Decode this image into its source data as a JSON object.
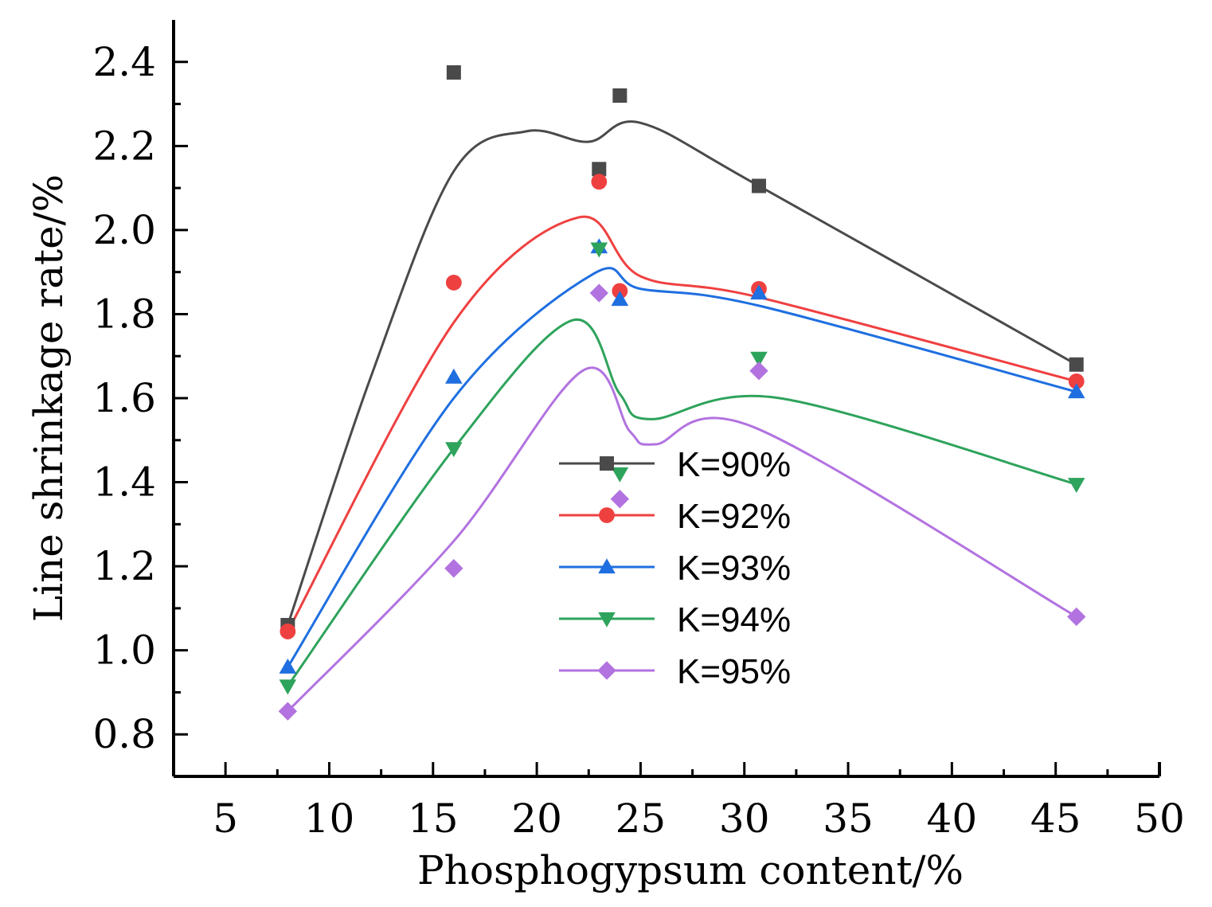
{
  "chart_data": {
    "type": "scatter",
    "title": "",
    "xlabel": "Phosphogypsum content/%",
    "ylabel": "Line shrinkage rate/%",
    "xlim": [
      2.5,
      50
    ],
    "ylim": [
      0.7,
      2.5
    ],
    "xticks": [
      5,
      10,
      15,
      20,
      25,
      30,
      35,
      40,
      45,
      50
    ],
    "xtick_labels": [
      "5",
      "10",
      "15",
      "20",
      "25",
      "30",
      "35",
      "40",
      "45",
      "50"
    ],
    "yticks": [
      0.8,
      1.0,
      1.2,
      1.4,
      1.6,
      1.8,
      2.0,
      2.2,
      2.4
    ],
    "ytick_labels": [
      "0.8",
      "1.0",
      "1.2",
      "1.4",
      "1.6",
      "1.8",
      "2.0",
      "2.2",
      "2.4"
    ],
    "grid": false,
    "legend_position": "center",
    "series": [
      {
        "name": "K=90%",
        "color": "#4a4a4a",
        "marker": "square",
        "points": [
          [
            8,
            1.06
          ],
          [
            16,
            2.375
          ],
          [
            23,
            2.145
          ],
          [
            24,
            2.32
          ],
          [
            30.7,
            2.105
          ],
          [
            46,
            1.68
          ]
        ],
        "fit": [
          [
            8,
            1.06
          ],
          [
            12,
            1.65
          ],
          [
            16,
            2.14
          ],
          [
            19.5,
            2.235
          ],
          [
            22.5,
            2.21
          ],
          [
            25,
            2.255
          ],
          [
            30.7,
            2.105
          ],
          [
            46,
            1.68
          ]
        ]
      },
      {
        "name": "K=92%",
        "color": "#ef4040",
        "marker": "circle",
        "points": [
          [
            8,
            1.045
          ],
          [
            16,
            1.875
          ],
          [
            23,
            2.115
          ],
          [
            24,
            1.855
          ],
          [
            30.7,
            1.86
          ],
          [
            46,
            1.64
          ]
        ],
        "fit": [
          [
            8,
            1.045
          ],
          [
            16,
            1.78
          ],
          [
            22,
            2.03
          ],
          [
            25,
            1.89
          ],
          [
            30.7,
            1.84
          ],
          [
            46,
            1.64
          ]
        ]
      },
      {
        "name": "K=93%",
        "color": "#1f6fe0",
        "marker": "triangle-up",
        "points": [
          [
            8,
            0.96
          ],
          [
            16,
            1.65
          ],
          [
            23,
            1.96
          ],
          [
            24,
            1.835
          ],
          [
            30.7,
            1.85
          ],
          [
            46,
            1.615
          ]
        ],
        "fit": [
          [
            8,
            0.96
          ],
          [
            16,
            1.6
          ],
          [
            22.7,
            1.895
          ],
          [
            25,
            1.86
          ],
          [
            30.7,
            1.82
          ],
          [
            46,
            1.615
          ]
        ]
      },
      {
        "name": "K=94%",
        "color": "#2ea35c",
        "marker": "triangle-down",
        "points": [
          [
            8,
            0.915
          ],
          [
            16,
            1.48
          ],
          [
            23,
            1.955
          ],
          [
            24,
            1.42
          ],
          [
            30.7,
            1.695
          ],
          [
            46,
            1.395
          ]
        ],
        "fit": [
          [
            8,
            0.915
          ],
          [
            16,
            1.48
          ],
          [
            21.7,
            1.785
          ],
          [
            24,
            1.61
          ],
          [
            25.5,
            1.55
          ],
          [
            31.7,
            1.6
          ],
          [
            46,
            1.395
          ]
        ]
      },
      {
        "name": "K=95%",
        "color": "#b273e0",
        "marker": "diamond",
        "points": [
          [
            8,
            0.855
          ],
          [
            16,
            1.195
          ],
          [
            23,
            1.85
          ],
          [
            24,
            1.36
          ],
          [
            30.7,
            1.665
          ],
          [
            46,
            1.08
          ]
        ],
        "fit": [
          [
            8,
            0.855
          ],
          [
            16,
            1.26
          ],
          [
            22.2,
            1.665
          ],
          [
            24.5,
            1.52
          ],
          [
            25.7,
            1.49
          ],
          [
            30.5,
            1.53
          ],
          [
            46,
            1.08
          ]
        ]
      }
    ]
  }
}
